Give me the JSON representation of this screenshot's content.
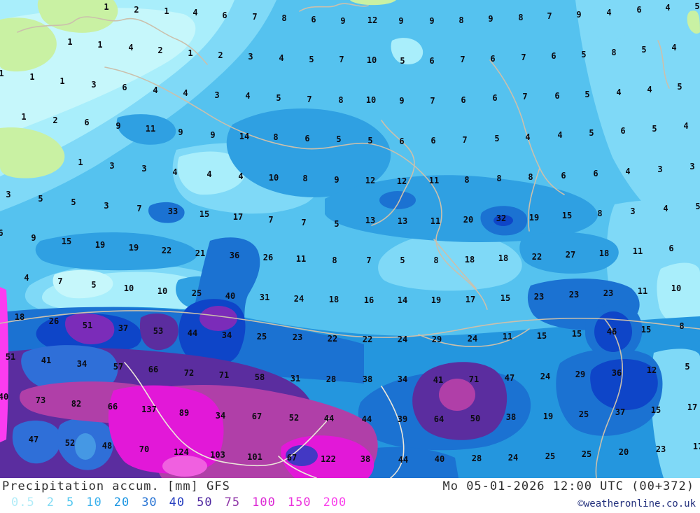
{
  "footer": {
    "title": "Precipitation accum. [mm] GFS",
    "datetime": "Mo 05-01-2026 12:00 UTC (00+372)",
    "copyright": "©weatheronline.co.uk",
    "scale": [
      {
        "label": "0.5",
        "color": "#b2ecf8"
      },
      {
        "label": "2",
        "color": "#84dcf4"
      },
      {
        "label": "5",
        "color": "#54c8f0"
      },
      {
        "label": "10",
        "color": "#38b0ec"
      },
      {
        "label": "20",
        "color": "#1c96e2"
      },
      {
        "label": "30",
        "color": "#2874d4"
      },
      {
        "label": "40",
        "color": "#2840c0"
      },
      {
        "label": "50",
        "color": "#5028a0"
      },
      {
        "label": "75",
        "color": "#9038a8"
      },
      {
        "label": "100",
        "color": "#dc28d4"
      },
      {
        "label": "150",
        "color": "#ec30dc"
      },
      {
        "label": "200",
        "color": "#fa40ec"
      }
    ]
  },
  "palette": {
    "band_05": "#c6f7fb",
    "band_2": "#a9eefb",
    "band_5": "#7fd9f7",
    "band_10": "#55c2ef",
    "band_20": "#2fa0e2",
    "band_20u": "#2496de",
    "band_30": "#1b72d2",
    "band_40": "#0e45c8",
    "band_50": "#5b2d9f",
    "band_50v": "#7b2cb9",
    "band_75": "#b03fa8",
    "band_100": "#e218d8",
    "band_150": "#f060e0",
    "band_200": "#fb3cf0",
    "dry_land": "#c9f1a3",
    "label_color": "#0b0b12"
  },
  "map": {
    "values": [
      [
        152,
        10,
        "1"
      ],
      [
        195,
        14,
        "2"
      ],
      [
        238,
        16,
        "1"
      ],
      [
        279,
        18,
        "4"
      ],
      [
        321,
        22,
        "6"
      ],
      [
        364,
        24,
        "7"
      ],
      [
        406,
        26,
        "8"
      ],
      [
        448,
        28,
        "6"
      ],
      [
        490,
        30,
        "9"
      ],
      [
        532,
        29,
        "12"
      ],
      [
        573,
        30,
        "9"
      ],
      [
        617,
        30,
        "9"
      ],
      [
        659,
        29,
        "8"
      ],
      [
        701,
        27,
        "9"
      ],
      [
        744,
        25,
        "8"
      ],
      [
        785,
        23,
        "7"
      ],
      [
        827,
        21,
        "9"
      ],
      [
        870,
        18,
        "4"
      ],
      [
        913,
        14,
        "6"
      ],
      [
        954,
        11,
        "4"
      ],
      [
        996,
        9,
        "5"
      ],
      [
        100,
        60,
        "1"
      ],
      [
        143,
        64,
        "1"
      ],
      [
        187,
        68,
        "4"
      ],
      [
        229,
        72,
        "2"
      ],
      [
        272,
        76,
        "1"
      ],
      [
        315,
        79,
        "2"
      ],
      [
        358,
        81,
        "3"
      ],
      [
        402,
        83,
        "4"
      ],
      [
        445,
        85,
        "5"
      ],
      [
        488,
        85,
        "7"
      ],
      [
        531,
        86,
        "10"
      ],
      [
        575,
        87,
        "5"
      ],
      [
        617,
        87,
        "6"
      ],
      [
        661,
        85,
        "7"
      ],
      [
        704,
        84,
        "6"
      ],
      [
        748,
        82,
        "7"
      ],
      [
        791,
        80,
        "6"
      ],
      [
        834,
        78,
        "5"
      ],
      [
        877,
        75,
        "8"
      ],
      [
        920,
        71,
        "5"
      ],
      [
        963,
        68,
        "4"
      ],
      [
        2,
        105,
        "1"
      ],
      [
        46,
        110,
        "1"
      ],
      [
        89,
        116,
        "1"
      ],
      [
        134,
        121,
        "3"
      ],
      [
        178,
        125,
        "6"
      ],
      [
        222,
        129,
        "4"
      ],
      [
        265,
        133,
        "4"
      ],
      [
        310,
        136,
        "3"
      ],
      [
        354,
        137,
        "4"
      ],
      [
        398,
        140,
        "5"
      ],
      [
        442,
        142,
        "7"
      ],
      [
        487,
        143,
        "8"
      ],
      [
        530,
        143,
        "10"
      ],
      [
        574,
        144,
        "9"
      ],
      [
        618,
        144,
        "7"
      ],
      [
        662,
        143,
        "6"
      ],
      [
        707,
        140,
        "6"
      ],
      [
        750,
        138,
        "7"
      ],
      [
        796,
        137,
        "6"
      ],
      [
        839,
        135,
        "5"
      ],
      [
        884,
        132,
        "4"
      ],
      [
        928,
        128,
        "4"
      ],
      [
        971,
        124,
        "5"
      ],
      [
        34,
        167,
        "1"
      ],
      [
        79,
        172,
        "2"
      ],
      [
        124,
        175,
        "6"
      ],
      [
        169,
        180,
        "9"
      ],
      [
        215,
        184,
        "11"
      ],
      [
        258,
        189,
        "9"
      ],
      [
        304,
        193,
        "9"
      ],
      [
        349,
        195,
        "14"
      ],
      [
        394,
        196,
        "8"
      ],
      [
        439,
        198,
        "6"
      ],
      [
        484,
        199,
        "5"
      ],
      [
        529,
        201,
        "5"
      ],
      [
        574,
        202,
        "6"
      ],
      [
        619,
        201,
        "6"
      ],
      [
        664,
        200,
        "7"
      ],
      [
        710,
        198,
        "5"
      ],
      [
        754,
        196,
        "4"
      ],
      [
        800,
        193,
        "4"
      ],
      [
        845,
        190,
        "5"
      ],
      [
        890,
        187,
        "6"
      ],
      [
        935,
        184,
        "5"
      ],
      [
        980,
        180,
        "4"
      ],
      [
        115,
        232,
        "1"
      ],
      [
        160,
        237,
        "3"
      ],
      [
        206,
        241,
        "3"
      ],
      [
        250,
        246,
        "4"
      ],
      [
        299,
        249,
        "4"
      ],
      [
        344,
        252,
        "4"
      ],
      [
        391,
        254,
        "10"
      ],
      [
        436,
        255,
        "8"
      ],
      [
        481,
        257,
        "9"
      ],
      [
        529,
        258,
        "12"
      ],
      [
        574,
        259,
        "12"
      ],
      [
        620,
        258,
        "11"
      ],
      [
        667,
        257,
        "8"
      ],
      [
        713,
        255,
        "8"
      ],
      [
        758,
        253,
        "8"
      ],
      [
        805,
        251,
        "6"
      ],
      [
        851,
        248,
        "6"
      ],
      [
        897,
        245,
        "4"
      ],
      [
        943,
        242,
        "3"
      ],
      [
        989,
        238,
        "3"
      ],
      [
        12,
        278,
        "3"
      ],
      [
        58,
        284,
        "5"
      ],
      [
        105,
        289,
        "5"
      ],
      [
        152,
        294,
        "3"
      ],
      [
        199,
        298,
        "7"
      ],
      [
        247,
        302,
        "33"
      ],
      [
        292,
        306,
        "15"
      ],
      [
        340,
        310,
        "17"
      ],
      [
        387,
        314,
        "7"
      ],
      [
        434,
        318,
        "7"
      ],
      [
        481,
        320,
        "5"
      ],
      [
        529,
        315,
        "13"
      ],
      [
        575,
        316,
        "13"
      ],
      [
        622,
        316,
        "11"
      ],
      [
        669,
        314,
        "20"
      ],
      [
        716,
        312,
        "32"
      ],
      [
        763,
        311,
        "19"
      ],
      [
        810,
        308,
        "15"
      ],
      [
        857,
        305,
        "8"
      ],
      [
        904,
        302,
        "3"
      ],
      [
        951,
        298,
        "4"
      ],
      [
        997,
        295,
        "5"
      ],
      [
        1,
        333,
        "6"
      ],
      [
        48,
        340,
        "9"
      ],
      [
        95,
        345,
        "15"
      ],
      [
        143,
        350,
        "19"
      ],
      [
        191,
        354,
        "19"
      ],
      [
        238,
        358,
        "22"
      ],
      [
        286,
        362,
        "21"
      ],
      [
        335,
        365,
        "36"
      ],
      [
        383,
        368,
        "26"
      ],
      [
        430,
        370,
        "11"
      ],
      [
        478,
        372,
        "8"
      ],
      [
        527,
        372,
        "7"
      ],
      [
        575,
        372,
        "5"
      ],
      [
        623,
        372,
        "8"
      ],
      [
        671,
        371,
        "18"
      ],
      [
        719,
        369,
        "18"
      ],
      [
        767,
        367,
        "22"
      ],
      [
        815,
        364,
        "27"
      ],
      [
        863,
        362,
        "18"
      ],
      [
        911,
        359,
        "11"
      ],
      [
        959,
        355,
        "6"
      ],
      [
        38,
        397,
        "4"
      ],
      [
        86,
        402,
        "7"
      ],
      [
        134,
        407,
        "5"
      ],
      [
        184,
        412,
        "10"
      ],
      [
        232,
        416,
        "10"
      ],
      [
        281,
        419,
        "25"
      ],
      [
        329,
        423,
        "40"
      ],
      [
        378,
        425,
        "31"
      ],
      [
        427,
        427,
        "24"
      ],
      [
        477,
        428,
        "18"
      ],
      [
        527,
        429,
        "16"
      ],
      [
        575,
        429,
        "14"
      ],
      [
        623,
        429,
        "19"
      ],
      [
        672,
        428,
        "17"
      ],
      [
        722,
        426,
        "15"
      ],
      [
        770,
        424,
        "23"
      ],
      [
        820,
        421,
        "23"
      ],
      [
        869,
        419,
        "23"
      ],
      [
        918,
        416,
        "11"
      ],
      [
        966,
        412,
        "10"
      ],
      [
        28,
        453,
        "18"
      ],
      [
        77,
        459,
        "26"
      ],
      [
        125,
        465,
        "51"
      ],
      [
        176,
        469,
        "37"
      ],
      [
        226,
        473,
        "53"
      ],
      [
        275,
        476,
        "44"
      ],
      [
        324,
        479,
        "34"
      ],
      [
        374,
        481,
        "25"
      ],
      [
        425,
        482,
        "23"
      ],
      [
        475,
        484,
        "22"
      ],
      [
        525,
        485,
        "22"
      ],
      [
        575,
        485,
        "24"
      ],
      [
        624,
        485,
        "29"
      ],
      [
        675,
        484,
        "24"
      ],
      [
        725,
        481,
        "11"
      ],
      [
        774,
        480,
        "15"
      ],
      [
        824,
        477,
        "15"
      ],
      [
        874,
        474,
        "46"
      ],
      [
        923,
        471,
        "15"
      ],
      [
        974,
        466,
        "8"
      ],
      [
        15,
        510,
        "51"
      ],
      [
        66,
        515,
        "41"
      ],
      [
        117,
        520,
        "34"
      ],
      [
        169,
        524,
        "57"
      ],
      [
        219,
        528,
        "66"
      ],
      [
        270,
        533,
        "72"
      ],
      [
        320,
        536,
        "71"
      ],
      [
        371,
        539,
        "58"
      ],
      [
        422,
        541,
        "31"
      ],
      [
        473,
        542,
        "28"
      ],
      [
        525,
        542,
        "38"
      ],
      [
        575,
        542,
        "34"
      ],
      [
        626,
        543,
        "41"
      ],
      [
        677,
        542,
        "71"
      ],
      [
        728,
        540,
        "47"
      ],
      [
        779,
        538,
        "24"
      ],
      [
        829,
        535,
        "29"
      ],
      [
        881,
        533,
        "36"
      ],
      [
        931,
        529,
        "12"
      ],
      [
        982,
        524,
        "5"
      ],
      [
        5,
        567,
        "40"
      ],
      [
        58,
        572,
        "73"
      ],
      [
        109,
        577,
        "82"
      ],
      [
        161,
        581,
        "66"
      ],
      [
        213,
        585,
        "137"
      ],
      [
        263,
        590,
        "89"
      ],
      [
        315,
        594,
        "34"
      ],
      [
        367,
        595,
        "67"
      ],
      [
        420,
        597,
        "52"
      ],
      [
        470,
        598,
        "44"
      ],
      [
        524,
        599,
        "44"
      ],
      [
        575,
        599,
        "39"
      ],
      [
        627,
        599,
        "64"
      ],
      [
        679,
        598,
        "50"
      ],
      [
        730,
        596,
        "38"
      ],
      [
        783,
        595,
        "19"
      ],
      [
        834,
        592,
        "25"
      ],
      [
        886,
        589,
        "37"
      ],
      [
        937,
        586,
        "15"
      ],
      [
        989,
        582,
        "17"
      ],
      [
        48,
        628,
        "47"
      ],
      [
        100,
        633,
        "52"
      ],
      [
        153,
        637,
        "48"
      ],
      [
        206,
        642,
        "70"
      ],
      [
        259,
        646,
        "124"
      ],
      [
        311,
        650,
        "103"
      ],
      [
        364,
        653,
        "101"
      ],
      [
        417,
        654,
        "67"
      ],
      [
        469,
        656,
        "122"
      ],
      [
        522,
        656,
        "38"
      ],
      [
        576,
        657,
        "44"
      ],
      [
        628,
        656,
        "40"
      ],
      [
        681,
        655,
        "28"
      ],
      [
        733,
        654,
        "24"
      ],
      [
        786,
        652,
        "25"
      ],
      [
        838,
        649,
        "25"
      ],
      [
        891,
        646,
        "20"
      ],
      [
        944,
        642,
        "23"
      ],
      [
        997,
        638,
        "17"
      ]
    ]
  }
}
